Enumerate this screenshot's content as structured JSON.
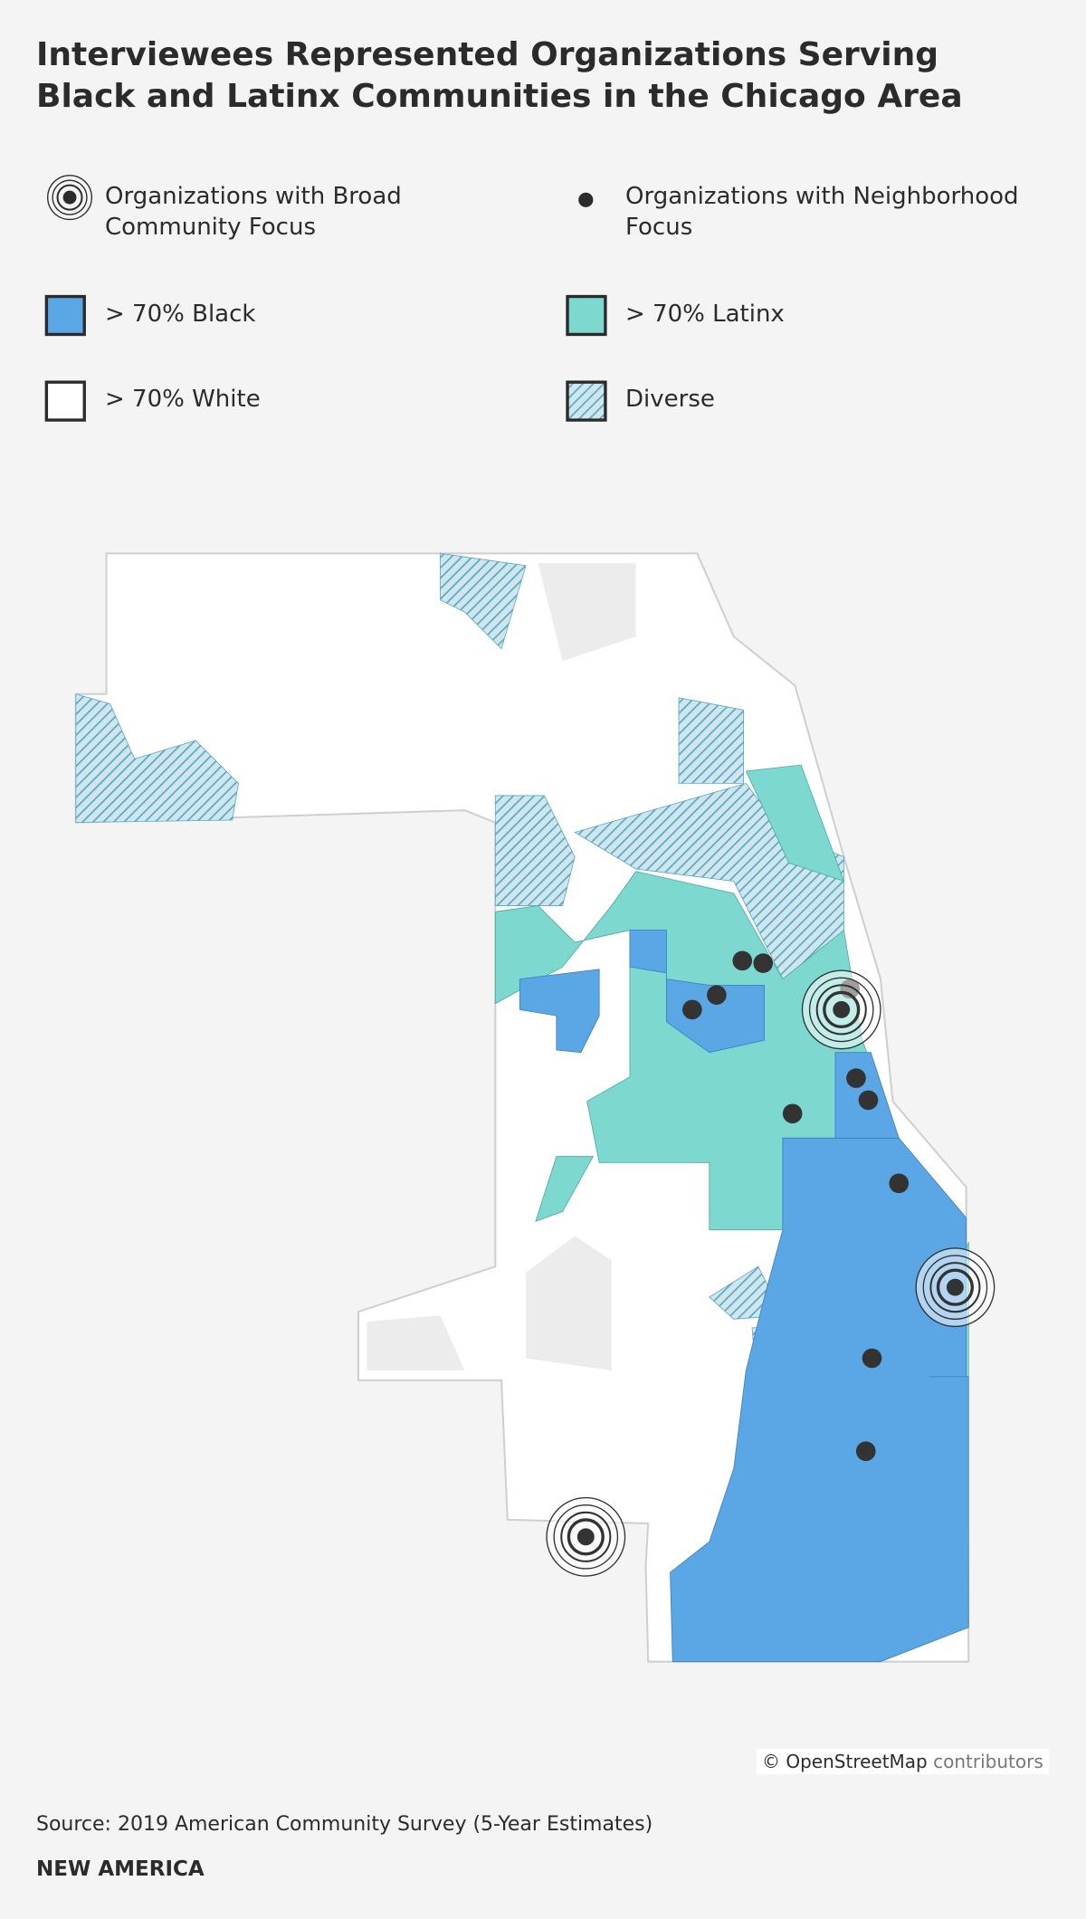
{
  "header": {
    "title": "Interviewees Represented Organizations Serving Black and Latinx Communities in the Chicago Area"
  },
  "legend": [
    {
      "label": "Organizations with Broad Community Focus"
    },
    {
      "label": "Organizations with Neighborhood Focus"
    },
    {
      "label": "> 70% Black"
    },
    {
      "label": "> 70% Latinx"
    },
    {
      "label": "> 70% White"
    },
    {
      "label": "Diverse"
    }
  ],
  "map": {
    "attribution": {
      "owner": "© OpenStreetMap",
      "role": "contributors"
    }
  },
  "footer": {
    "source": "Source: 2019 American Community Survey (5-Year Estimates)",
    "brand": "NEW AMERICA"
  }
}
